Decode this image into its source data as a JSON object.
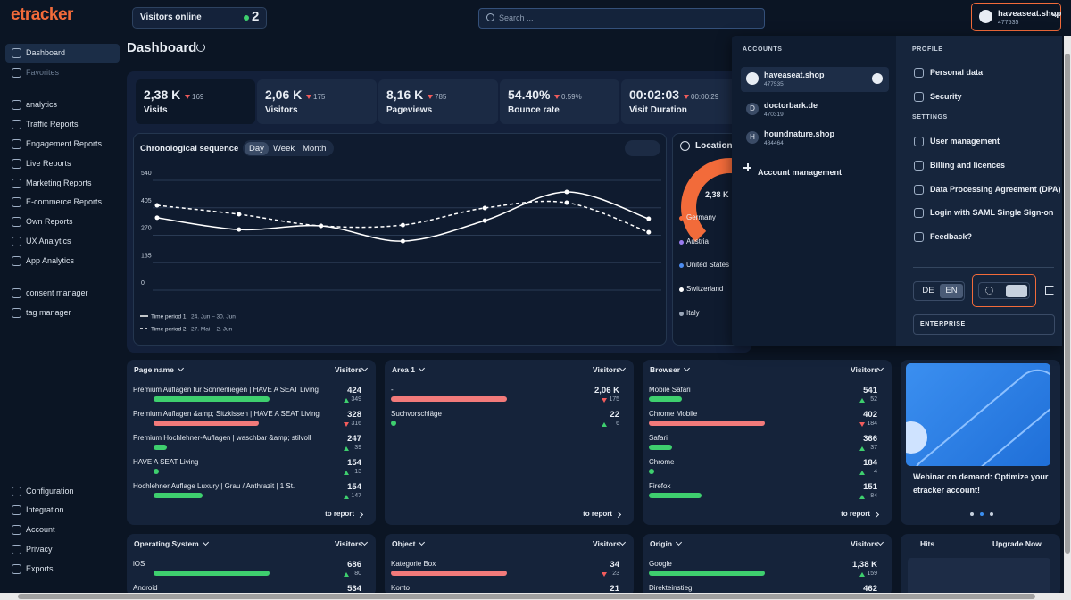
{
  "header": {
    "logo": "etracker",
    "visitors_online": {
      "label": "Visitors online",
      "count": "2"
    },
    "search": "Search ...",
    "account": {
      "name": "haveaseat.shop",
      "id": "477535"
    }
  },
  "sidebar": {
    "top": [
      "Dashboard",
      "Favorites"
    ],
    "analytics": [
      "analytics",
      "Traffic Reports",
      "Engagement Reports",
      "Live Reports",
      "Marketing Reports",
      "E-commerce Reports",
      "Own Reports",
      "UX Analytics",
      "App Analytics"
    ],
    "tools": [
      "consent manager",
      "tag manager"
    ],
    "bottom": [
      "Configuration",
      "Integration",
      "Account",
      "Privacy",
      "Exports"
    ]
  },
  "page_title": "Dashboard",
  "kpis": [
    {
      "value": "2,38 K",
      "delta": "169",
      "dir": "down",
      "label": "Visits"
    },
    {
      "value": "2,06 K",
      "delta": "175",
      "dir": "down",
      "label": "Visitors"
    },
    {
      "value": "8,16 K",
      "delta": "785",
      "dir": "down",
      "label": "Pageviews"
    },
    {
      "value": "54.40%",
      "delta": "0.59%",
      "dir": "down",
      "label": "Bounce rate"
    },
    {
      "value": "00:02:03",
      "delta": "00:00:29",
      "dir": "down",
      "label": "Visit Duration"
    }
  ],
  "chart": {
    "type": "line",
    "title": "Chronological sequence",
    "tabs": [
      "Day",
      "Week",
      "Month"
    ],
    "ylim": [
      0,
      540
    ],
    "yticks": [
      540,
      405,
      270,
      135,
      0
    ],
    "grid": true,
    "series": [
      {
        "name": "Time period 1:",
        "period": "24. Jun – 30. Jun",
        "color": "#ffffff",
        "dash": false,
        "values": [
          356,
          298,
          316,
          241,
          342,
          483,
          351
        ]
      },
      {
        "name": "Time period 2:",
        "period": "27. Mai – 2. Jun",
        "color": "#ffffff",
        "dash": true,
        "values": [
          417,
          373,
          316,
          320,
          404,
          430,
          285
        ]
      }
    ]
  },
  "location": {
    "title": "Location",
    "total": "2,38 K",
    "countries": [
      {
        "name": "Germany",
        "color": "#f26b3a"
      },
      {
        "name": "Austria",
        "color": "#9a7cf0"
      },
      {
        "name": "United States",
        "color": "#4c8cf0"
      },
      {
        "name": "Switzerland",
        "color": "#ffffff"
      },
      {
        "name": "Italy",
        "color": "#9aa6b8"
      }
    ]
  },
  "menu": {
    "accounts_heading": "ACCOUNTS",
    "accounts": [
      {
        "name": "haveaseat.shop",
        "id": "477535",
        "selected": true
      },
      {
        "initial": "D",
        "name": "doctorbark.de",
        "id": "470319"
      },
      {
        "initial": "H",
        "name": "houndnature.shop",
        "id": "484464"
      }
    ],
    "account_management": "Account management",
    "profile_heading": "PROFILE",
    "profile": [
      "Personal data",
      "Security"
    ],
    "settings_heading": "SETTINGS",
    "settings": [
      "User management",
      "Billing and licences",
      "Data Processing Agreement (DPA)",
      "Login with SAML Single Sign-on",
      "Feedback?"
    ],
    "languages": [
      "DE",
      "EN"
    ],
    "plan": "ENTERPRISE"
  },
  "widgets": [
    {
      "title": "Page name",
      "column": "Visitors",
      "footer": "to report",
      "rows": [
        {
          "label": "Premium Auflagen für Sonnenliegen | HAVE A SEAT Living",
          "value": "424",
          "delta": 349,
          "dir": "up"
        },
        {
          "label": "Premium Auflagen &amp; Sitzkissen | HAVE A SEAT Living",
          "value": "328",
          "delta": 316,
          "dir": "down"
        },
        {
          "label": "Premium Hochlehner-Auflagen | waschbar &amp; stilvoll",
          "value": "247",
          "delta": 39,
          "dir": "up"
        },
        {
          "label": "HAVE A SEAT Living",
          "value": "154",
          "delta": 13,
          "dir": "up"
        },
        {
          "label": "Hochlehner Auflage Luxury | Grau / Anthrazit | 1 St.",
          "value": "154",
          "delta": 147,
          "dir": "up"
        }
      ]
    },
    {
      "title": "Area 1",
      "column": "Visitors",
      "footer": "to report",
      "rows": [
        {
          "label": "-",
          "value": "2,06 K",
          "delta": 175,
          "dir": "down"
        },
        {
          "label": "Suchvorschläge",
          "value": "22",
          "delta": 6,
          "dir": "up"
        }
      ]
    },
    {
      "title": "Browser",
      "column": "Visitors",
      "footer": "to report",
      "rows": [
        {
          "label": "Mobile Safari",
          "value": "541",
          "delta": 52,
          "dir": "up"
        },
        {
          "label": "Chrome Mobile",
          "value": "402",
          "delta": 184,
          "dir": "down"
        },
        {
          "label": "Safari",
          "value": "366",
          "delta": 37,
          "dir": "up"
        },
        {
          "label": "Chrome",
          "value": "184",
          "delta": 4,
          "dir": "up"
        },
        {
          "label": "Firefox",
          "value": "151",
          "delta": 84,
          "dir": "up"
        }
      ]
    },
    {
      "title": "Operating System",
      "column": "Visitors",
      "rows": [
        {
          "label": "iOS",
          "value": "686",
          "delta": 80,
          "dir": "up"
        },
        {
          "label": "Android",
          "value": "534"
        }
      ]
    },
    {
      "title": "Object",
      "column": "Visitors",
      "rows": [
        {
          "label": "Kategorie Box",
          "value": "34",
          "delta": 23,
          "dir": "down"
        },
        {
          "label": "Konto",
          "value": "21"
        }
      ]
    },
    {
      "title": "Origin",
      "column": "Visitors",
      "rows": [
        {
          "label": "Google",
          "value": "1,38 K",
          "delta": 159,
          "dir": "up"
        },
        {
          "label": "Direkteinstieg",
          "value": "462"
        }
      ]
    }
  ],
  "promo": {
    "text": "Webinar on demand: Optimize your etracker account!"
  },
  "hits": {
    "title": "Hits",
    "action": "Upgrade Now"
  }
}
